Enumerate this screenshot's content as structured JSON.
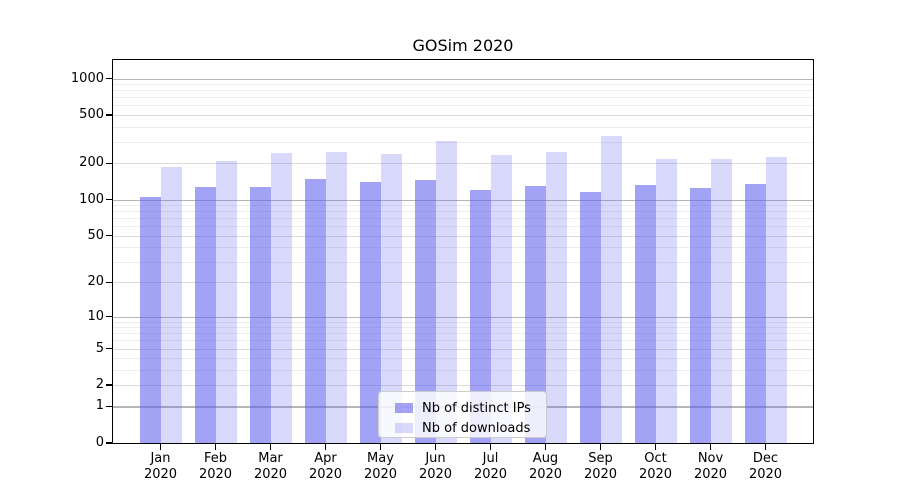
{
  "chart_data": {
    "type": "bar",
    "title": "GOSim 2020",
    "categories": [
      {
        "month": "Jan",
        "year": "2020"
      },
      {
        "month": "Feb",
        "year": "2020"
      },
      {
        "month": "Mar",
        "year": "2020"
      },
      {
        "month": "Apr",
        "year": "2020"
      },
      {
        "month": "May",
        "year": "2020"
      },
      {
        "month": "Jun",
        "year": "2020"
      },
      {
        "month": "Jul",
        "year": "2020"
      },
      {
        "month": "Aug",
        "year": "2020"
      },
      {
        "month": "Sep",
        "year": "2020"
      },
      {
        "month": "Oct",
        "year": "2020"
      },
      {
        "month": "Nov",
        "year": "2020"
      },
      {
        "month": "Dec",
        "year": "2020"
      }
    ],
    "series": [
      {
        "name": "Nb of distinct IPs",
        "key": "ips",
        "values": [
          105,
          128,
          127,
          149,
          140,
          145,
          120,
          130,
          116,
          133,
          125,
          135
        ]
      },
      {
        "name": "Nb of downloads",
        "key": "downloads",
        "values": [
          185,
          208,
          244,
          246,
          237,
          305,
          235,
          248,
          337,
          217,
          217,
          225
        ]
      }
    ],
    "yscale": "log1p",
    "ylim": [
      0,
      1420
    ],
    "yticks": [
      1000,
      500,
      200,
      100,
      50,
      20,
      10,
      5,
      2,
      1,
      0
    ],
    "minor_yticks": [
      900,
      800,
      700,
      600,
      400,
      300,
      90,
      80,
      70,
      60,
      40,
      30,
      9,
      8,
      7,
      6,
      4,
      3
    ],
    "grid": "horizontal",
    "legend_position": "bottom-center-inside"
  },
  "colors": {
    "bar_ips": "rgba(97,97,237,0.58)",
    "bar_downloads": "rgba(97,97,237,0.24)",
    "grid_minor": "#ededed",
    "grid_major": "#dcdcdc",
    "grid_pow10": "#b6b6b6",
    "axis": "#000000",
    "legend_border": "#cccccc"
  }
}
